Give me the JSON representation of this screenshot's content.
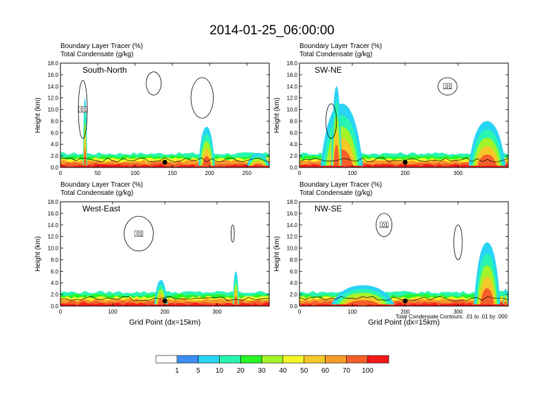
{
  "figure": {
    "title": "2014-01-25_06:00:00",
    "field_label_1": "Boundary Layer Tracer",
    "field_units_1": "(%)",
    "field_label_2": "Total Condensate",
    "field_units_2": "(g/kg)",
    "ylabel": "Height (km)",
    "xlabel": "Grid Point (dx=15km)",
    "contour_note": "Total Condensate Contours: .01 to .01 by .000",
    "contour_label": ".01"
  },
  "colorbar": {
    "levels": [
      "1",
      "5",
      "10",
      "20",
      "30",
      "40",
      "50",
      "60",
      "70",
      "100"
    ],
    "colors": [
      "#ffffff",
      "#3d8ef5",
      "#29d4f5",
      "#29f5b0",
      "#29f529",
      "#a3f529",
      "#f5f529",
      "#f5c829",
      "#f59c29",
      "#f55f29",
      "#f51a1a"
    ]
  },
  "chart_data": [
    {
      "type": "heatmap",
      "panel": "South-North",
      "x_ticks": [
        0,
        50,
        100,
        150,
        200,
        250
      ],
      "x_range": [
        0,
        280
      ],
      "y_ticks": [
        "0.0",
        "2.0",
        "4.0",
        "6.0",
        "8.0",
        "10.0",
        "12.0",
        "14.0",
        "16.0",
        "18.0"
      ],
      "y_range": [
        0,
        18
      ],
      "marker_x": 140,
      "shows_xlabel": false
    },
    {
      "type": "heatmap",
      "panel": "SW-NE",
      "x_ticks": [
        0,
        100,
        200,
        300
      ],
      "x_range": [
        0,
        395
      ],
      "y_ticks": [
        "0.0",
        "2.0",
        "4.0",
        "6.0",
        "8.0",
        "10.0",
        "12.0",
        "14.0",
        "16.0",
        "18.0"
      ],
      "y_range": [
        0,
        18
      ],
      "marker_x": 200,
      "shows_xlabel": false
    },
    {
      "type": "heatmap",
      "panel": "West-East",
      "x_ticks": [
        0,
        100,
        200,
        300
      ],
      "x_range": [
        0,
        400
      ],
      "y_ticks": [
        "0.0",
        "2.0",
        "4.0",
        "6.0",
        "8.0",
        "10.0",
        "12.0",
        "14.0",
        "16.0",
        "18.0"
      ],
      "y_range": [
        0,
        18
      ],
      "marker_x": 200,
      "shows_xlabel": true
    },
    {
      "type": "heatmap",
      "panel": "NW-SE",
      "x_ticks": [
        0,
        100,
        200,
        300
      ],
      "x_range": [
        0,
        395
      ],
      "y_ticks": [
        "0.0",
        "2.0",
        "4.0",
        "6.0",
        "8.0",
        "10.0",
        "12.0",
        "14.0",
        "16.0",
        "18.0"
      ],
      "y_range": [
        0,
        18
      ],
      "marker_x": 200,
      "shows_xlabel": true
    }
  ]
}
